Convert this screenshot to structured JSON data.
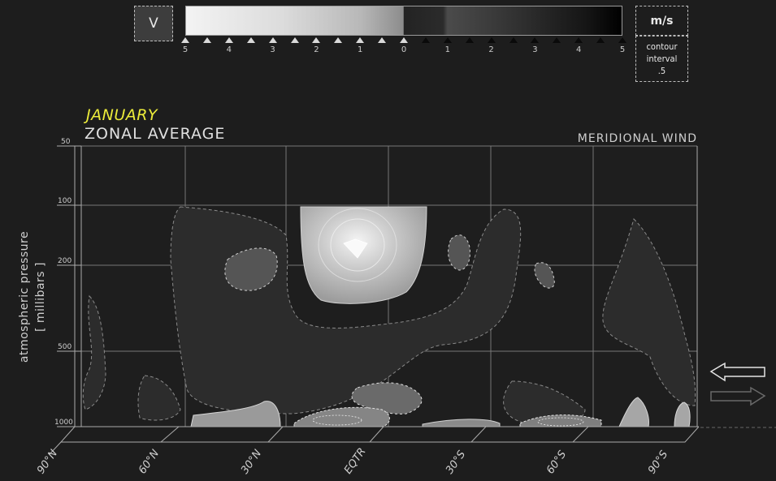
{
  "variable_label": "V",
  "units_label": "m/s",
  "contour_interval": {
    "label_line1": "contour",
    "label_line2": "interval",
    "value": ".5"
  },
  "scale": {
    "ticks": [
      {
        "label": "5",
        "value": 5
      },
      {
        "label": "4",
        "value": 4
      },
      {
        "label": "3",
        "value": 3
      },
      {
        "label": "2",
        "value": 2
      },
      {
        "label": "1",
        "value": 1
      },
      {
        "label": "0",
        "value": 0
      },
      {
        "label": "1",
        "value": -1
      },
      {
        "label": "2",
        "value": -2
      },
      {
        "label": "3",
        "value": -3
      },
      {
        "label": "4",
        "value": -4
      },
      {
        "label": "5",
        "value": -5
      }
    ]
  },
  "title": {
    "month": "JANUARY",
    "subtitle": "ZONAL AVERAGE",
    "variable": "MERIDIONAL WIND"
  },
  "yaxis": {
    "line1": "atmospheric pressure",
    "line2": "[ millibars ]"
  },
  "chart_data": {
    "type": "heatmap",
    "title": "MERIDIONAL WIND",
    "subtitle": "ZONAL AVERAGE",
    "month": "JANUARY",
    "x_ticks": [
      "90°N",
      "60°N",
      "30°N",
      "EQTR",
      "30°S",
      "60°S",
      "90°S"
    ],
    "x_values": [
      90,
      60,
      30,
      0,
      -30,
      -60,
      -90
    ],
    "y_ticks": [
      "50",
      "100",
      "200",
      "500",
      "1000"
    ],
    "y_values": [
      50,
      100,
      200,
      500,
      1000
    ],
    "y_scale": "log",
    "ylabel": "atmospheric pressure [ millibars ]",
    "units": "m/s",
    "contour_interval": 0.5,
    "colorbar_range": [
      -5,
      5
    ],
    "features": [
      {
        "lat": -6,
        "p_mb": 180,
        "v": 4.5
      },
      {
        "lat": 33,
        "p_mb": 200,
        "v": -1.0
      },
      {
        "lat": -25,
        "p_mb": 180,
        "v": -1.0
      },
      {
        "lat": -50,
        "p_mb": 250,
        "v": -0.5
      },
      {
        "lat": 3,
        "p_mb": 900,
        "v": -1.5
      },
      {
        "lat": 22,
        "p_mb": 990,
        "v": 2.0
      },
      {
        "lat": 14,
        "p_mb": 1000,
        "v": -3.0
      },
      {
        "lat": -45,
        "p_mb": 1000,
        "v": -3.0
      },
      {
        "lat": -80,
        "p_mb": 950,
        "v": 1.0
      }
    ]
  }
}
